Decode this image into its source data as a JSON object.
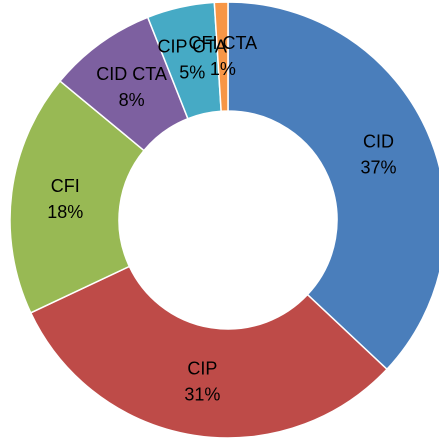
{
  "chart_data": {
    "type": "donut",
    "categories": [
      "CID",
      "CIP",
      "CFI",
      "CID CTA",
      "CIP CTA",
      "CFI CTA"
    ],
    "values": [
      37,
      31,
      18,
      8,
      5,
      1
    ],
    "value_labels": [
      "37%",
      "31%",
      "18%",
      "8%",
      "5%",
      "1%"
    ],
    "colors": [
      "#4a7ebb",
      "#be4b48",
      "#98b954",
      "#7d60a0",
      "#46aac5",
      "#f79646"
    ]
  }
}
